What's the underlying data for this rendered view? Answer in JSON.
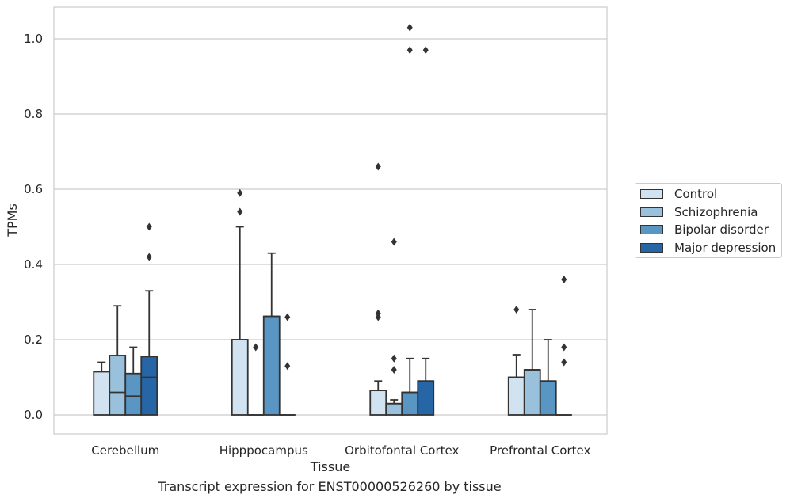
{
  "chart_data": {
    "type": "box",
    "xlabel": "Tissue",
    "ylabel": "TPMs",
    "caption": "Transcript expression for ENST00000526260 by tissue",
    "ylim": [
      -0.05,
      1.08
    ],
    "yticks": [
      "0.0",
      "0.2",
      "0.4",
      "0.6",
      "0.8",
      "1.0"
    ],
    "ytick_values": [
      0,
      0.2,
      0.4,
      0.6,
      0.8,
      1.0
    ],
    "grid": true,
    "legend_position": "right",
    "categories": [
      "Cerebellum",
      "Hipppocampus",
      "Orbitofontal Cortex",
      "Prefrontal Cortex"
    ],
    "series": [
      {
        "name": "Control",
        "color": "#d1e2f0",
        "boxes": [
          {
            "q1": 0,
            "median": 0.115,
            "q3": 0.115,
            "whislo": 0,
            "whishi": 0.14,
            "fliers": []
          },
          {
            "q1": 0,
            "median": 0.2,
            "q3": 0.2,
            "whislo": 0,
            "whishi": 0.5,
            "fliers": [
              0.54,
              0.59
            ]
          },
          {
            "q1": 0,
            "median": 0.065,
            "q3": 0.065,
            "whislo": 0,
            "whishi": 0.09,
            "fliers": [
              0.26,
              0.27,
              0.66
            ]
          },
          {
            "q1": 0,
            "median": 0.1,
            "q3": 0.1,
            "whislo": 0,
            "whishi": 0.16,
            "fliers": [
              0.28
            ]
          }
        ]
      },
      {
        "name": "Schizophrenia",
        "color": "#9ac1dc",
        "boxes": [
          {
            "q1": 0,
            "median": 0.06,
            "q3": 0.158,
            "whislo": 0,
            "whishi": 0.29,
            "fliers": []
          },
          {
            "q1": 0,
            "median": 0,
            "q3": 0,
            "whislo": 0,
            "whishi": 0,
            "fliers": [
              0.18
            ]
          },
          {
            "q1": 0,
            "median": 0.03,
            "q3": 0.03,
            "whislo": 0,
            "whishi": 0.04,
            "fliers": [
              0.12,
              0.15,
              0.46
            ]
          },
          {
            "q1": 0,
            "median": 0.12,
            "q3": 0.12,
            "whislo": 0,
            "whishi": 0.28,
            "fliers": []
          }
        ]
      },
      {
        "name": "Bipolar disorder",
        "color": "#5a96c3",
        "boxes": [
          {
            "q1": 0,
            "median": 0.05,
            "q3": 0.11,
            "whislo": 0,
            "whishi": 0.18,
            "fliers": []
          },
          {
            "q1": 0,
            "median": 0.262,
            "q3": 0.262,
            "whislo": 0,
            "whishi": 0.43,
            "fliers": []
          },
          {
            "q1": 0,
            "median": 0.06,
            "q3": 0.06,
            "whislo": 0,
            "whishi": 0.15,
            "fliers": [
              0.97,
              1.03
            ]
          },
          {
            "q1": 0,
            "median": 0.09,
            "q3": 0.09,
            "whislo": 0,
            "whishi": 0.2,
            "fliers": []
          }
        ]
      },
      {
        "name": "Major depression",
        "color": "#2666a6",
        "boxes": [
          {
            "q1": 0,
            "median": 0.1,
            "q3": 0.155,
            "whislo": 0,
            "whishi": 0.33,
            "fliers": [
              0.42,
              0.5
            ]
          },
          {
            "q1": 0,
            "median": 0,
            "q3": 0,
            "whislo": 0,
            "whishi": 0,
            "fliers": [
              0.13,
              0.26
            ]
          },
          {
            "q1": 0,
            "median": 0.09,
            "q3": 0.09,
            "whislo": 0,
            "whishi": 0.15,
            "fliers": [
              0.97
            ]
          },
          {
            "q1": 0,
            "median": 0,
            "q3": 0,
            "whislo": 0,
            "whishi": 0,
            "fliers": [
              0.14,
              0.18,
              0.36
            ]
          }
        ]
      }
    ]
  }
}
